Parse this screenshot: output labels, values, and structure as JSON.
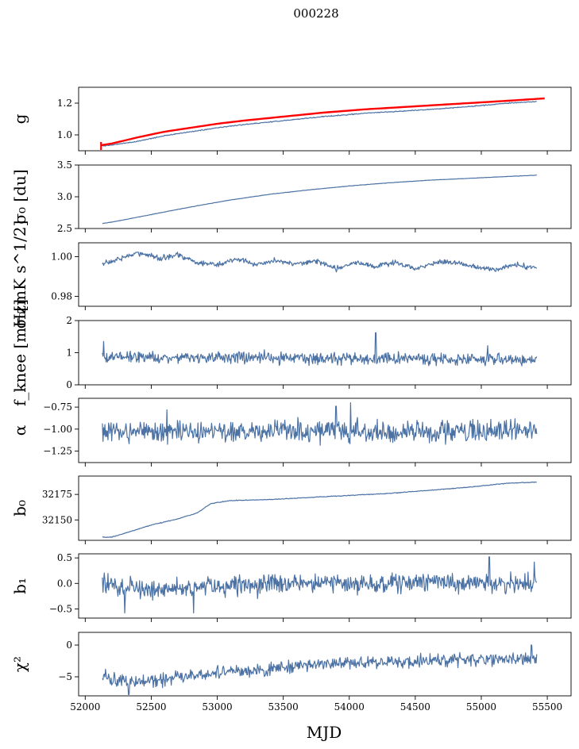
{
  "figure": {
    "suptitle": "000228",
    "xlabel": "MJD",
    "colors": {
      "series": "#4c72a4",
      "overlay": "#ff0000"
    }
  },
  "chart_data": [
    {
      "type": "line",
      "name": "g",
      "ylabel": "g",
      "xlim": [
        51950,
        55680
      ],
      "ylim": [
        0.9,
        1.3
      ],
      "yticks": [
        1.0,
        1.2
      ],
      "ytick_labels": [
        "1.0",
        "1.2"
      ],
      "xticks": [
        52000,
        52500,
        53000,
        53500,
        54000,
        54500,
        55000,
        55500
      ],
      "series": [
        {
          "name": "gain",
          "color": "#4c72a4",
          "noise": 0.002,
          "x": [
            52130,
            52200,
            52400,
            52600,
            52800,
            53000,
            53200,
            53500,
            53800,
            54100,
            54400,
            54700,
            55000,
            55200,
            55420
          ],
          "y": [
            0.93,
            0.935,
            0.96,
            0.995,
            1.02,
            1.045,
            1.065,
            1.09,
            1.115,
            1.135,
            1.15,
            1.165,
            1.185,
            1.2,
            1.21
          ]
        },
        {
          "name": "gain-model",
          "color": "#ff0000",
          "noise": 0.0,
          "width": 2.4,
          "x": [
            52120,
            52200,
            52400,
            52600,
            52800,
            53000,
            53200,
            53500,
            53800,
            54100,
            54400,
            54700,
            55000,
            55200,
            55480
          ],
          "y": [
            0.935,
            0.945,
            0.985,
            1.02,
            1.045,
            1.07,
            1.09,
            1.115,
            1.14,
            1.16,
            1.175,
            1.19,
            1.205,
            1.215,
            1.23
          ]
        }
      ]
    },
    {
      "type": "line",
      "name": "sigma0-du",
      "ylabel": "σ₀ [du]",
      "xlim": [
        51950,
        55680
      ],
      "ylim": [
        2.5,
        3.5
      ],
      "yticks": [
        2.5,
        3.0,
        3.5
      ],
      "ytick_labels": [
        "2.5",
        "3.0",
        "3.5"
      ],
      "xticks": [
        52000,
        52500,
        53000,
        53500,
        54000,
        54500,
        55000,
        55500
      ],
      "series": [
        {
          "name": "sigma0",
          "color": "#4c72a4",
          "noise": 0.002,
          "x": [
            52130,
            52200,
            52500,
            52800,
            53100,
            53400,
            53700,
            54000,
            54300,
            54600,
            54900,
            55200,
            55420
          ],
          "y": [
            2.58,
            2.6,
            2.72,
            2.84,
            2.95,
            3.04,
            3.11,
            3.17,
            3.22,
            3.26,
            3.29,
            3.32,
            3.34
          ]
        }
      ]
    },
    {
      "type": "line",
      "name": "sigma0-mK",
      "ylabel": "σ₀[mK s^1/2]",
      "xlim": [
        51950,
        55680
      ],
      "ylim": [
        0.975,
        1.007
      ],
      "yticks": [
        0.98,
        1.0
      ],
      "ytick_labels": [
        "0.98",
        "1.00"
      ],
      "xticks": [
        52000,
        52500,
        53000,
        53500,
        54000,
        54500,
        55000,
        55500
      ],
      "series": [
        {
          "name": "sigma0-mK",
          "color": "#4c72a4",
          "noise": 0.0009,
          "x": [
            52130,
            52250,
            52400,
            52550,
            52700,
            52850,
            53000,
            53150,
            53300,
            53450,
            53600,
            53750,
            53900,
            54050,
            54200,
            54350,
            54500,
            54650,
            54800,
            54950,
            55100,
            55250,
            55420
          ],
          "y": [
            0.996,
            0.999,
            1.002,
            0.999,
            1.001,
            0.997,
            0.996,
            0.999,
            0.996,
            0.998,
            0.996,
            0.998,
            0.994,
            0.997,
            0.995,
            0.997,
            0.994,
            0.997,
            0.997,
            0.995,
            0.993,
            0.996,
            0.994
          ]
        }
      ]
    },
    {
      "type": "line",
      "name": "fknee",
      "ylabel": "f_knee [mHz]",
      "xlim": [
        51950,
        55680
      ],
      "ylim": [
        0,
        2
      ],
      "yticks": [
        0,
        1,
        2
      ],
      "ytick_labels": [
        "0",
        "1",
        "2"
      ],
      "xticks": [
        52000,
        52500,
        53000,
        53500,
        54000,
        54500,
        55000,
        55500
      ],
      "series": [
        {
          "name": "fknee",
          "color": "#4c72a4",
          "noise": 0.13,
          "spikes": [
            [
              52140,
              1.35
            ],
            [
              54200,
              1.62
            ],
            [
              55050,
              1.22
            ]
          ],
          "x": [
            52130,
            52600,
            53100,
            53600,
            54100,
            54600,
            55100,
            55420
          ],
          "y": [
            0.88,
            0.86,
            0.85,
            0.83,
            0.82,
            0.8,
            0.78,
            0.76
          ]
        }
      ]
    },
    {
      "type": "line",
      "name": "alpha",
      "ylabel": "α",
      "xlim": [
        51950,
        55680
      ],
      "ylim": [
        -1.38,
        -0.65
      ],
      "yticks": [
        -1.25,
        -1.0,
        -0.75
      ],
      "ytick_labels": [
        "−1.25",
        "−1.00",
        "−0.75"
      ],
      "xticks": [
        52000,
        52500,
        53000,
        53500,
        54000,
        54500,
        55000,
        55500
      ],
      "series": [
        {
          "name": "alpha",
          "color": "#4c72a4",
          "noise": 0.09,
          "spikes": [
            [
              54010,
              -0.7
            ],
            [
              53900,
              -0.74
            ],
            [
              52620,
              -0.78
            ]
          ],
          "x": [
            52130,
            55420
          ],
          "y": [
            -1.03,
            -1.03
          ]
        }
      ]
    },
    {
      "type": "line",
      "name": "b0",
      "ylabel": "b₀",
      "xlim": [
        51950,
        55680
      ],
      "ylim": [
        32130,
        32193
      ],
      "yticks": [
        32150,
        32175
      ],
      "ytick_labels": [
        "32150",
        "32175"
      ],
      "xticks": [
        52000,
        52500,
        53000,
        53500,
        54000,
        54500,
        55000,
        55500
      ],
      "series": [
        {
          "name": "b0",
          "color": "#4c72a4",
          "noise": 0.25,
          "x": [
            52130,
            52200,
            52300,
            52500,
            52700,
            52850,
            52950,
            53100,
            53400,
            53700,
            54000,
            54300,
            54600,
            54900,
            55200,
            55420
          ],
          "y": [
            32133,
            32133,
            32137,
            32145,
            32151,
            32157,
            32166,
            32169,
            32170,
            32172,
            32174,
            32176,
            32179,
            32182,
            32186,
            32187
          ]
        }
      ]
    },
    {
      "type": "line",
      "name": "b1",
      "ylabel": "b₁",
      "xlim": [
        51950,
        55680
      ],
      "ylim": [
        -0.68,
        0.58
      ],
      "yticks": [
        -0.5,
        0.0,
        0.5
      ],
      "ytick_labels": [
        "−0.5",
        "0.0",
        "0.5"
      ],
      "xticks": [
        52000,
        52500,
        53000,
        53500,
        54000,
        54500,
        55000,
        55500
      ],
      "series": [
        {
          "name": "b1",
          "color": "#4c72a4",
          "noise": 0.13,
          "spikes": [
            [
              55060,
              0.52
            ],
            [
              55400,
              0.42
            ],
            [
              52300,
              -0.58
            ],
            [
              52820,
              -0.58
            ]
          ],
          "x": [
            52130,
            52300,
            52600,
            53000,
            53500,
            54000,
            54500,
            55000,
            55420
          ],
          "y": [
            0.0,
            -0.1,
            -0.12,
            -0.05,
            0.0,
            0.0,
            0.0,
            0.0,
            0.0
          ]
        }
      ]
    },
    {
      "type": "line",
      "name": "chi2",
      "ylabel": "χ²",
      "xlim": [
        51950,
        55680
      ],
      "ylim": [
        -8,
        2
      ],
      "yticks": [
        -5,
        0
      ],
      "ytick_labels": [
        "−5",
        "0"
      ],
      "xticks": [
        52000,
        52500,
        53000,
        53500,
        54000,
        54500,
        55000,
        55500
      ],
      "xtick_labels": [
        "52000",
        "52500",
        "53000",
        "53500",
        "54000",
        "54500",
        "55000",
        "55500"
      ],
      "series": [
        {
          "name": "chi2",
          "color": "#4c72a4",
          "noise": 0.7,
          "spikes": [
            [
              52330,
              -7.8
            ],
            [
              55380,
              0.0
            ]
          ],
          "x": [
            52130,
            52250,
            52400,
            52600,
            52800,
            53000,
            53300,
            53600,
            53900,
            54200,
            54500,
            54800,
            55100,
            55420
          ],
          "y": [
            -4.8,
            -5.6,
            -5.8,
            -5.2,
            -4.8,
            -4.3,
            -4.0,
            -3.2,
            -2.8,
            -2.6,
            -2.6,
            -2.3,
            -2.2,
            -2.2
          ]
        }
      ]
    }
  ]
}
